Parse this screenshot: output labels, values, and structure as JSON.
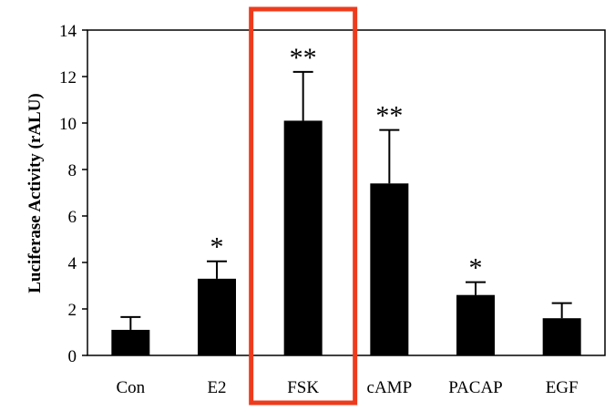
{
  "chart_data": {
    "type": "bar",
    "title": "",
    "xlabel": "",
    "ylabel": "Luciferase Activity (rALU)",
    "ylim": [
      0,
      14
    ],
    "yticks": [
      0,
      2,
      4,
      6,
      8,
      10,
      12,
      14
    ],
    "categories": [
      "Con",
      "E2",
      "FSK",
      "cAMP",
      "PACAP",
      "EGF"
    ],
    "values": [
      1.1,
      3.3,
      10.1,
      7.4,
      2.6,
      1.6
    ],
    "errors": [
      0.55,
      0.75,
      2.1,
      2.3,
      0.55,
      0.65
    ],
    "annotations": [
      "",
      "*",
      "**",
      "**",
      "*",
      ""
    ],
    "highlight": {
      "category": "FSK",
      "color": "#ee3b1c"
    },
    "grid": false,
    "bar_color": "#000000"
  }
}
